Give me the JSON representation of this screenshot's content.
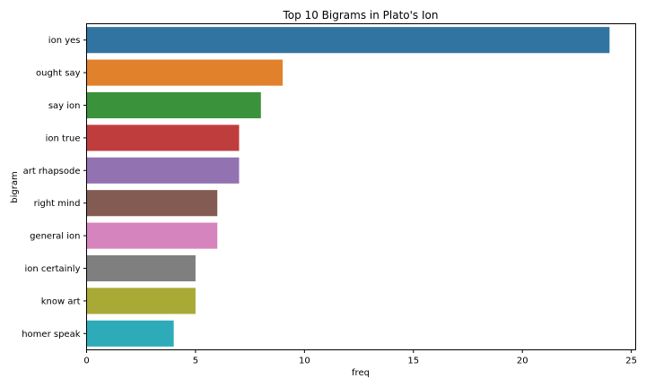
{
  "chart_data": {
    "type": "bar",
    "orientation": "horizontal",
    "title": "Top 10 Bigrams in Plato's Ion",
    "xlabel": "freq",
    "ylabel": "bigram",
    "categories": [
      "ion yes",
      "ought say",
      "say ion",
      "ion true",
      "art rhapsode",
      "right mind",
      "general ion",
      "ion certainly",
      "know art",
      "homer speak"
    ],
    "values": [
      24,
      9,
      8,
      7,
      7,
      6,
      6,
      5,
      5,
      4
    ],
    "colors": [
      "#3274a1",
      "#e1812c",
      "#3a923a",
      "#c03d3e",
      "#9372b2",
      "#845b53",
      "#d684bd",
      "#7f7f7f",
      "#a9aa35",
      "#2eabb8"
    ],
    "xlim": [
      0,
      25.2
    ],
    "xticks": [
      0,
      5,
      10,
      15,
      20,
      25
    ],
    "grid": false,
    "legend": "none"
  }
}
